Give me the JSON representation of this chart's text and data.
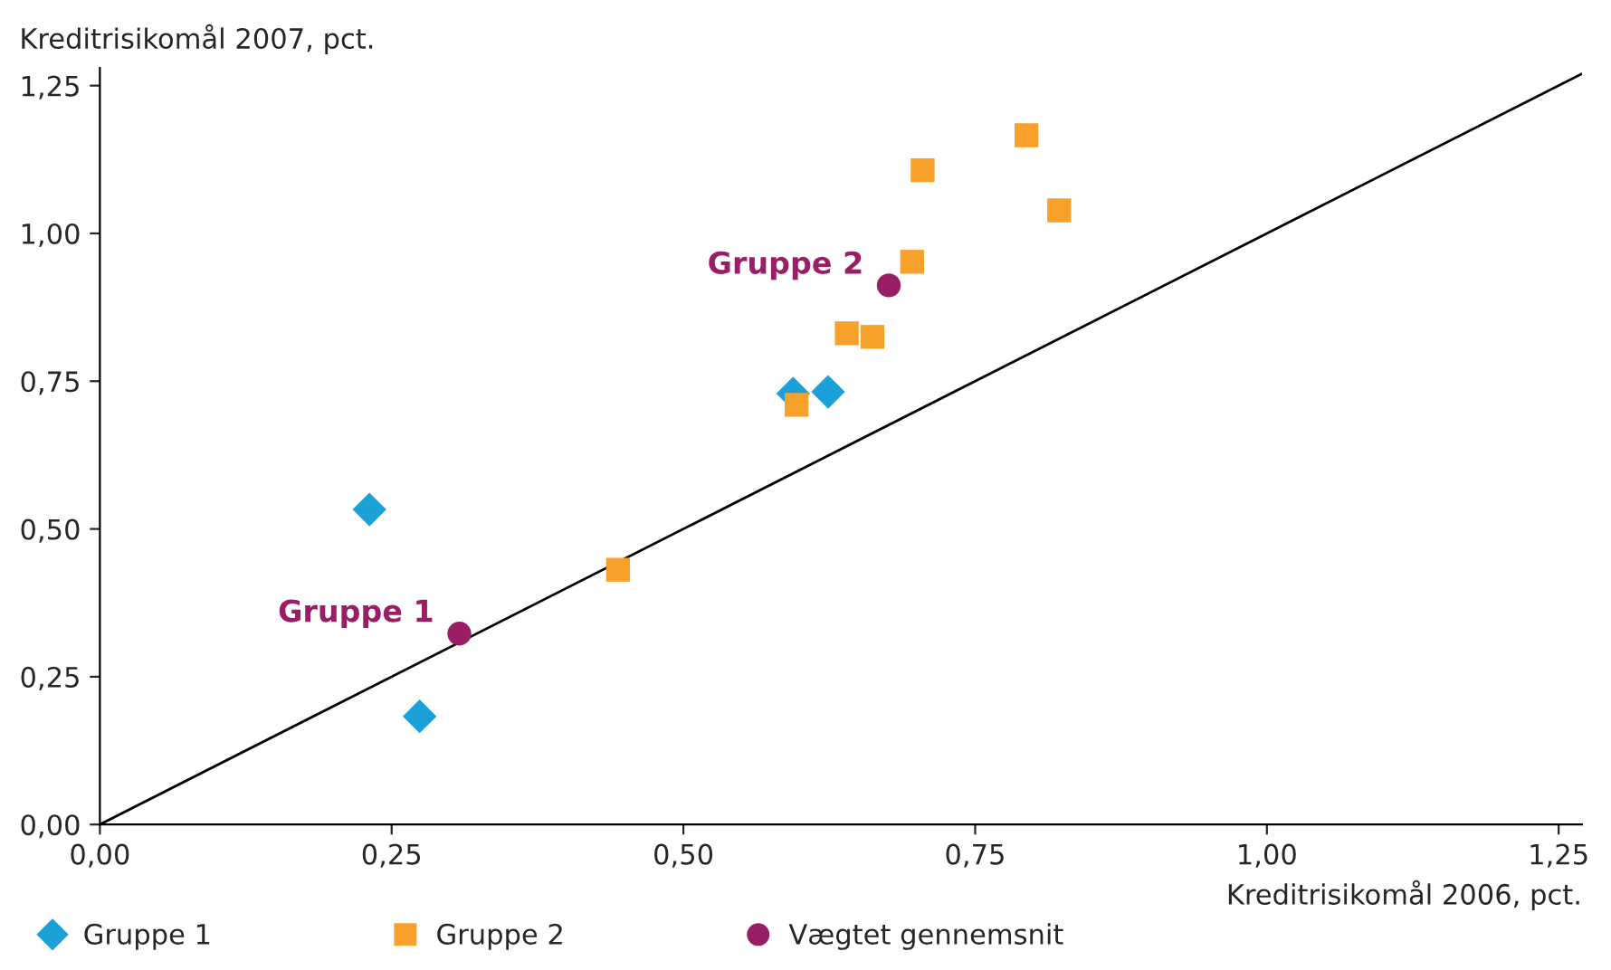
{
  "chart_data": {
    "type": "scatter",
    "xlabel": "Kreditrisikomål 2006, pct.",
    "ylabel": "Kreditrisikomål 2007, pct.",
    "xlim": [
      0,
      1.27
    ],
    "ylim": [
      0,
      1.28
    ],
    "xticks": [
      {
        "value": 0,
        "label": "0,00"
      },
      {
        "value": 0.25,
        "label": "0,25"
      },
      {
        "value": 0.5,
        "label": "0,50"
      },
      {
        "value": 0.75,
        "label": "0,75"
      },
      {
        "value": 1.0,
        "label": "1,00"
      },
      {
        "value": 1.25,
        "label": "1,25"
      }
    ],
    "yticks": [
      {
        "value": 0,
        "label": "0,00"
      },
      {
        "value": 0.25,
        "label": "0,25"
      },
      {
        "value": 0.5,
        "label": "0,50"
      },
      {
        "value": 0.75,
        "label": "0,75"
      },
      {
        "value": 1.0,
        "label": "1,00"
      },
      {
        "value": 1.25,
        "label": "1,25"
      }
    ],
    "grid": false,
    "legend": "bottom",
    "series": [
      {
        "name": "Gruppe 1",
        "color": "#1ba1d8",
        "marker": "diamond",
        "x": [
          0.231,
          0.274,
          0.594,
          0.624
        ],
        "values": [
          0.533,
          0.183,
          0.729,
          0.732
        ]
      },
      {
        "name": "Gruppe 2",
        "color": "#f7a12b",
        "marker": "square",
        "x": [
          0.444,
          0.597,
          0.64,
          0.662,
          0.696,
          0.705,
          0.794,
          0.822
        ],
        "values": [
          0.431,
          0.71,
          0.831,
          0.825,
          0.952,
          1.107,
          1.166,
          1.039
        ]
      },
      {
        "name": "Vægtet gennemsnit",
        "color": "#991e66",
        "marker": "circle",
        "x": [
          0.308,
          0.676
        ],
        "values": [
          0.323,
          0.912
        ]
      },
      {
        "type": "line",
        "color": "#000000",
        "marker": "none",
        "x": [
          0,
          1.27
        ],
        "values": [
          0,
          1.27
        ]
      }
    ],
    "annotations": [
      {
        "text": "Gruppe 1",
        "x": 0.308,
        "y": 0.323
      },
      {
        "text": "Gruppe 2",
        "x": 0.676,
        "y": 0.912
      }
    ]
  }
}
